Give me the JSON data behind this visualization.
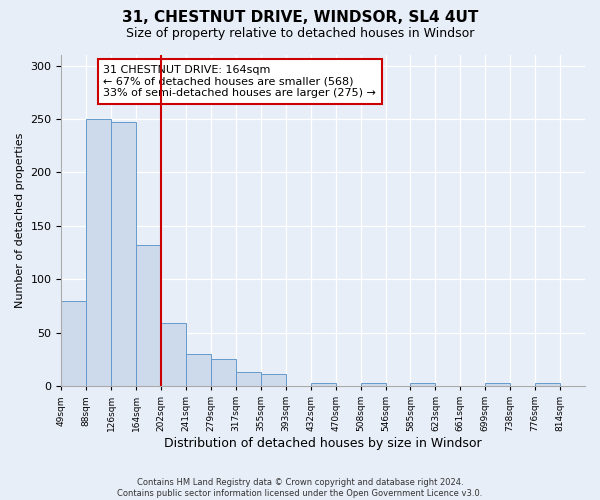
{
  "title": "31, CHESTNUT DRIVE, WINDSOR, SL4 4UT",
  "subtitle": "Size of property relative to detached houses in Windsor",
  "xlabel": "Distribution of detached houses by size in Windsor",
  "ylabel": "Number of detached properties",
  "categories": [
    "49sqm",
    "88sqm",
    "126sqm",
    "164sqm",
    "202sqm",
    "241sqm",
    "279sqm",
    "317sqm",
    "355sqm",
    "393sqm",
    "432sqm",
    "470sqm",
    "508sqm",
    "546sqm",
    "585sqm",
    "623sqm",
    "661sqm",
    "699sqm",
    "738sqm",
    "776sqm",
    "814sqm"
  ],
  "bar_heights": [
    80,
    250,
    247,
    132,
    59,
    30,
    25,
    13,
    11,
    0,
    3,
    0,
    3,
    0,
    3,
    0,
    0,
    3,
    0,
    3,
    0
  ],
  "highlight_after_index": 3,
  "bar_color": "#cddaeb",
  "bar_edge_color": "#6699cc",
  "highlight_line_color": "#cc0000",
  "annotation_text": "31 CHESTNUT DRIVE: 164sqm\n← 67% of detached houses are smaller (568)\n33% of semi-detached houses are larger (275) →",
  "annotation_box_color": "#ffffff",
  "annotation_box_edge": "#cc0000",
  "footnote": "Contains HM Land Registry data © Crown copyright and database right 2024.\nContains public sector information licensed under the Open Government Licence v3.0.",
  "ylim": [
    0,
    310
  ],
  "yticks": [
    0,
    50,
    100,
    150,
    200,
    250,
    300
  ],
  "background_color": "#e8eef8",
  "axes_background": "#e8eef8",
  "title_fontsize": 11,
  "subtitle_fontsize": 9,
  "ylabel_fontsize": 8,
  "xlabel_fontsize": 9
}
